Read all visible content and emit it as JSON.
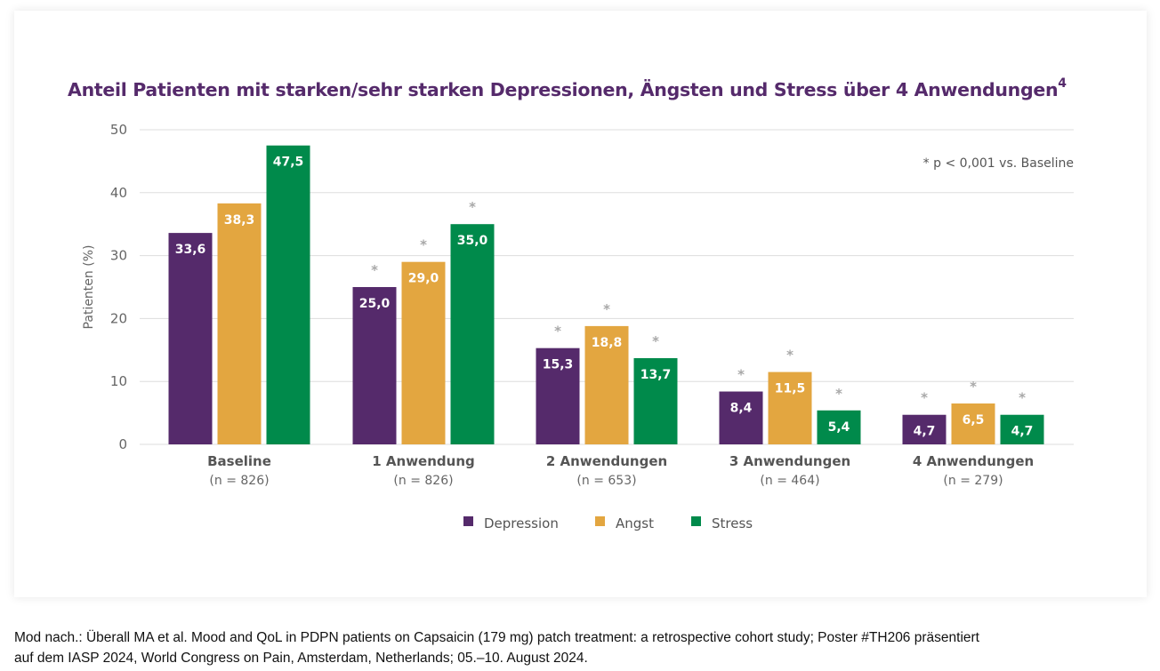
{
  "chart_data": {
    "type": "bar",
    "title": "Anteil Patienten mit starken/sehr starken Depressionen, Ängsten und Stress über 4 Anwendungen",
    "title_superscript": "4",
    "xlabel": "",
    "ylabel": "Patienten (%)",
    "ylim": [
      0,
      50
    ],
    "yticks": [
      0,
      10,
      20,
      30,
      40,
      50
    ],
    "grid": true,
    "categories": [
      "Baseline",
      "1 Anwendung",
      "2 Anwendungen",
      "3 Anwendungen",
      "4 Anwendungen"
    ],
    "category_n": [
      "(n = 826)",
      "(n = 826)",
      "(n = 653)",
      "(n = 464)",
      "(n = 279)"
    ],
    "series": [
      {
        "name": "Depression",
        "color": "#552a6b",
        "values": [
          33.6,
          25.0,
          15.3,
          8.4,
          4.7
        ],
        "labels": [
          "33,6",
          "25,0",
          "15,3",
          "8,4",
          "4,7"
        ],
        "significant": [
          false,
          true,
          true,
          true,
          true
        ]
      },
      {
        "name": "Angst",
        "color": "#e3a640",
        "values": [
          38.3,
          29.0,
          18.8,
          11.5,
          6.5
        ],
        "labels": [
          "38,3",
          "29,0",
          "18,8",
          "11,5",
          "6,5"
        ],
        "significant": [
          false,
          true,
          true,
          true,
          true
        ]
      },
      {
        "name": "Stress",
        "color": "#008a4b",
        "values": [
          47.5,
          35.0,
          13.7,
          5.4,
          4.7
        ],
        "labels": [
          "47,5",
          "35,0",
          "13,7",
          "5,4",
          "4,7"
        ],
        "significant": [
          false,
          true,
          true,
          true,
          true
        ]
      }
    ],
    "significance_marker": "*",
    "annotation": "* p < 0,001 vs. Baseline",
    "legend_position": "bottom-center"
  },
  "footnote": {
    "line1": "Mod nach.: Überall MA et al. Mood and QoL in PDPN patients on Capsaicin (179 mg) patch treatment: a retrospective cohort study; Poster #TH206 präsentiert",
    "line2": "auf dem IASP 2024, World Congress on Pain, Amsterdam, Netherlands; 05.–10. August 2024."
  }
}
